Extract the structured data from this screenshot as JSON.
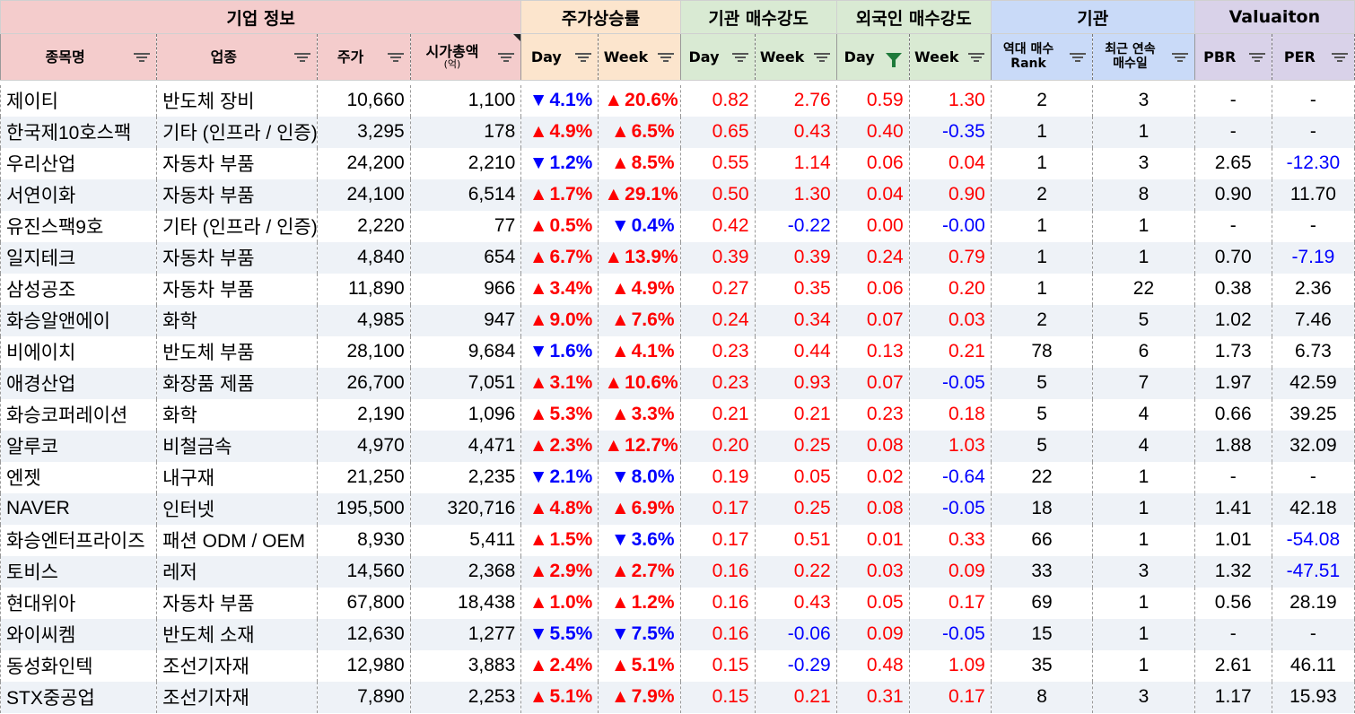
{
  "groups": {
    "info": "기업 정보",
    "price": "주가상승률",
    "inst": "기관 매수강도",
    "foreign": "외국인 매수강도",
    "org": "기관",
    "valuation": "Valuaiton"
  },
  "columns": {
    "name": "종목명",
    "sector": "업종",
    "price": "주가",
    "mcap": "시가총액",
    "mcap_unit": "(억)",
    "price_day": "Day",
    "price_week": "Week",
    "inst_day": "Day",
    "inst_week": "Week",
    "foreign_day": "Day",
    "foreign_week": "Week",
    "rank_line1": "역대 매수",
    "rank_line2": "Rank",
    "streak_line1": "최근 연속",
    "streak_line2": "매수일",
    "pbr": "PBR",
    "per": "PER"
  },
  "colors": {
    "up": "#ff0000",
    "down": "#0000ff",
    "filter_active": "#1e7a3a"
  },
  "rows": [
    {
      "name": "제이티",
      "sector": "반도체 장비",
      "price": "10,660",
      "mcap": "1,100",
      "day": "4.1%",
      "day_dir": "down",
      "week": "20.6%",
      "week_dir": "up",
      "inst_day": "0.82",
      "inst_week": "2.76",
      "frn_day": "0.59",
      "frn_week": "1.30",
      "rank": "2",
      "streak": "3",
      "pbr": "-",
      "per": "-"
    },
    {
      "name": "한국제10호스팩",
      "sector": "기타 (인프라 / 인증)",
      "price": "3,295",
      "mcap": "178",
      "day": "4.9%",
      "day_dir": "up",
      "week": "6.5%",
      "week_dir": "up",
      "inst_day": "0.65",
      "inst_week": "0.43",
      "frn_day": "0.40",
      "frn_week": "-0.35",
      "rank": "1",
      "streak": "1",
      "pbr": "-",
      "per": "-"
    },
    {
      "name": "우리산업",
      "sector": "자동차 부품",
      "price": "24,200",
      "mcap": "2,210",
      "day": "1.2%",
      "day_dir": "down",
      "week": "8.5%",
      "week_dir": "up",
      "inst_day": "0.55",
      "inst_week": "1.14",
      "frn_day": "0.06",
      "frn_week": "0.04",
      "rank": "1",
      "streak": "3",
      "pbr": "2.65",
      "per": "-12.30"
    },
    {
      "name": "서연이화",
      "sector": "자동차 부품",
      "price": "24,100",
      "mcap": "6,514",
      "day": "1.7%",
      "day_dir": "up",
      "week": "29.1%",
      "week_dir": "up",
      "inst_day": "0.50",
      "inst_week": "1.30",
      "frn_day": "0.04",
      "frn_week": "0.90",
      "rank": "2",
      "streak": "8",
      "pbr": "0.90",
      "per": "11.70"
    },
    {
      "name": "유진스팩9호",
      "sector": "기타 (인프라 / 인증)",
      "price": "2,220",
      "mcap": "77",
      "day": "0.5%",
      "day_dir": "up",
      "week": "0.4%",
      "week_dir": "down",
      "inst_day": "0.42",
      "inst_week": "-0.22",
      "frn_day": "0.00",
      "frn_week": "-0.00",
      "rank": "1",
      "streak": "1",
      "pbr": "-",
      "per": "-"
    },
    {
      "name": "일지테크",
      "sector": "자동차 부품",
      "price": "4,840",
      "mcap": "654",
      "day": "6.7%",
      "day_dir": "up",
      "week": "13.9%",
      "week_dir": "up",
      "inst_day": "0.39",
      "inst_week": "0.39",
      "frn_day": "0.24",
      "frn_week": "0.79",
      "rank": "1",
      "streak": "1",
      "pbr": "0.70",
      "per": "-7.19"
    },
    {
      "name": "삼성공조",
      "sector": "자동차 부품",
      "price": "11,890",
      "mcap": "966",
      "day": "3.4%",
      "day_dir": "up",
      "week": "4.9%",
      "week_dir": "up",
      "inst_day": "0.27",
      "inst_week": "0.35",
      "frn_day": "0.06",
      "frn_week": "0.20",
      "rank": "1",
      "streak": "22",
      "pbr": "0.38",
      "per": "2.36"
    },
    {
      "name": "화승알앤에이",
      "sector": "화학",
      "price": "4,985",
      "mcap": "947",
      "day": "9.0%",
      "day_dir": "up",
      "week": "7.6%",
      "week_dir": "up",
      "inst_day": "0.24",
      "inst_week": "0.34",
      "frn_day": "0.07",
      "frn_week": "0.03",
      "rank": "2",
      "streak": "5",
      "pbr": "1.02",
      "per": "7.46"
    },
    {
      "name": "비에이치",
      "sector": "반도체 부품",
      "price": "28,100",
      "mcap": "9,684",
      "day": "1.6%",
      "day_dir": "down",
      "week": "4.1%",
      "week_dir": "up",
      "inst_day": "0.23",
      "inst_week": "0.44",
      "frn_day": "0.13",
      "frn_week": "0.21",
      "rank": "78",
      "streak": "6",
      "pbr": "1.73",
      "per": "6.73"
    },
    {
      "name": "애경산업",
      "sector": "화장품 제품",
      "price": "26,700",
      "mcap": "7,051",
      "day": "3.1%",
      "day_dir": "up",
      "week": "10.6%",
      "week_dir": "up",
      "inst_day": "0.23",
      "inst_week": "0.93",
      "frn_day": "0.07",
      "frn_week": "-0.05",
      "rank": "5",
      "streak": "7",
      "pbr": "1.97",
      "per": "42.59"
    },
    {
      "name": "화승코퍼레이션",
      "sector": "화학",
      "price": "2,190",
      "mcap": "1,096",
      "day": "5.3%",
      "day_dir": "up",
      "week": "3.3%",
      "week_dir": "up",
      "inst_day": "0.21",
      "inst_week": "0.21",
      "frn_day": "0.23",
      "frn_week": "0.18",
      "rank": "5",
      "streak": "4",
      "pbr": "0.66",
      "per": "39.25"
    },
    {
      "name": "알루코",
      "sector": "비철금속",
      "price": "4,970",
      "mcap": "4,471",
      "day": "2.3%",
      "day_dir": "up",
      "week": "12.7%",
      "week_dir": "up",
      "inst_day": "0.20",
      "inst_week": "0.25",
      "frn_day": "0.08",
      "frn_week": "1.03",
      "rank": "5",
      "streak": "4",
      "pbr": "1.88",
      "per": "32.09"
    },
    {
      "name": "엔젯",
      "sector": "내구재",
      "price": "21,250",
      "mcap": "2,235",
      "day": "2.1%",
      "day_dir": "down",
      "week": "8.0%",
      "week_dir": "down",
      "inst_day": "0.19",
      "inst_week": "0.05",
      "frn_day": "0.02",
      "frn_week": "-0.64",
      "rank": "22",
      "streak": "1",
      "pbr": "-",
      "per": "-"
    },
    {
      "name": "NAVER",
      "sector": "인터넷",
      "price": "195,500",
      "mcap": "320,716",
      "day": "4.8%",
      "day_dir": "up",
      "week": "6.9%",
      "week_dir": "up",
      "inst_day": "0.17",
      "inst_week": "0.25",
      "frn_day": "0.08",
      "frn_week": "-0.05",
      "rank": "18",
      "streak": "1",
      "pbr": "1.41",
      "per": "42.18"
    },
    {
      "name": "화승엔터프라이즈",
      "sector": "패션 ODM / OEM",
      "price": "8,930",
      "mcap": "5,411",
      "day": "1.5%",
      "day_dir": "up",
      "week": "3.6%",
      "week_dir": "down",
      "inst_day": "0.17",
      "inst_week": "0.51",
      "frn_day": "0.01",
      "frn_week": "0.33",
      "rank": "66",
      "streak": "1",
      "pbr": "1.01",
      "per": "-54.08"
    },
    {
      "name": "토비스",
      "sector": "레저",
      "price": "14,560",
      "mcap": "2,368",
      "day": "2.9%",
      "day_dir": "up",
      "week": "2.7%",
      "week_dir": "up",
      "inst_day": "0.16",
      "inst_week": "0.22",
      "frn_day": "0.03",
      "frn_week": "0.09",
      "rank": "33",
      "streak": "3",
      "pbr": "1.32",
      "per": "-47.51"
    },
    {
      "name": "현대위아",
      "sector": "자동차 부품",
      "price": "67,800",
      "mcap": "18,438",
      "day": "1.0%",
      "day_dir": "up",
      "week": "1.2%",
      "week_dir": "up",
      "inst_day": "0.16",
      "inst_week": "0.43",
      "frn_day": "0.05",
      "frn_week": "0.17",
      "rank": "69",
      "streak": "1",
      "pbr": "0.56",
      "per": "28.19"
    },
    {
      "name": "와이씨켐",
      "sector": "반도체 소재",
      "price": "12,630",
      "mcap": "1,277",
      "day": "5.5%",
      "day_dir": "down",
      "week": "7.5%",
      "week_dir": "down",
      "inst_day": "0.16",
      "inst_week": "-0.06",
      "frn_day": "0.09",
      "frn_week": "-0.05",
      "rank": "15",
      "streak": "1",
      "pbr": "-",
      "per": "-"
    },
    {
      "name": "동성화인텍",
      "sector": "조선기자재",
      "price": "12,980",
      "mcap": "3,883",
      "day": "2.4%",
      "day_dir": "up",
      "week": "5.1%",
      "week_dir": "up",
      "inst_day": "0.15",
      "inst_week": "-0.29",
      "frn_day": "0.48",
      "frn_week": "1.09",
      "rank": "35",
      "streak": "1",
      "pbr": "2.61",
      "per": "46.11"
    },
    {
      "name": "STX중공업",
      "sector": "조선기자재",
      "price": "7,890",
      "mcap": "2,253",
      "day": "5.1%",
      "day_dir": "up",
      "week": "7.9%",
      "week_dir": "up",
      "inst_day": "0.15",
      "inst_week": "0.21",
      "frn_day": "0.31",
      "frn_week": "0.17",
      "rank": "8",
      "streak": "3",
      "pbr": "1.17",
      "per": "15.93"
    }
  ]
}
